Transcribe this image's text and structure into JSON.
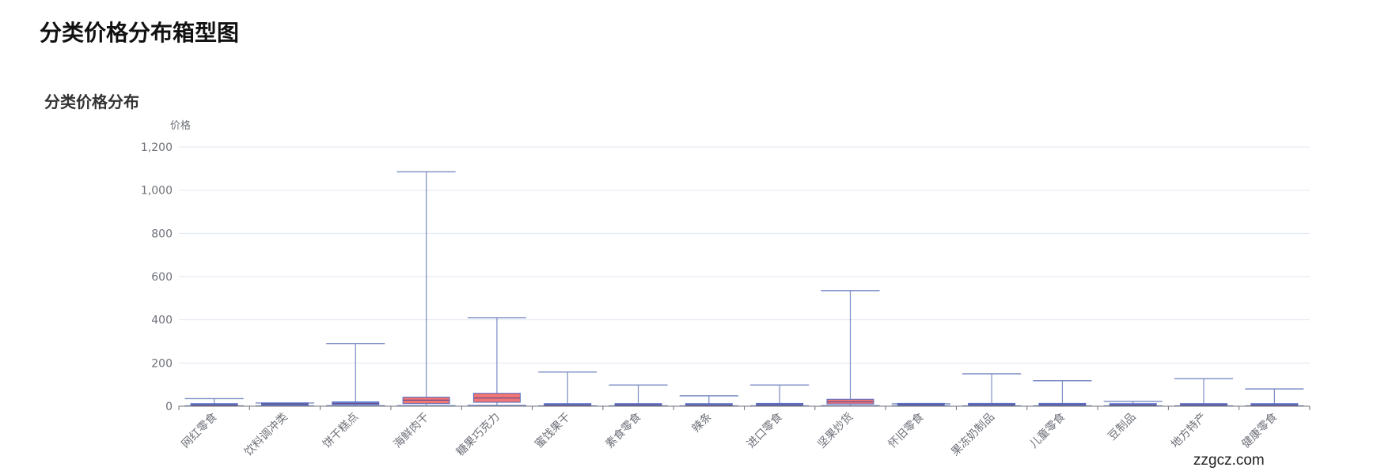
{
  "page": {
    "title": "分类价格分布箱型图",
    "watermark": "zzgcz.com"
  },
  "chart_data": {
    "type": "boxplot",
    "title": "分类价格分布",
    "xlabel": "",
    "ylabel": "价格",
    "ylim": [
      0,
      1200
    ],
    "yticks": [
      0,
      200,
      400,
      600,
      800,
      1000,
      1200
    ],
    "ytick_labels": [
      "0",
      "200",
      "400",
      "600",
      "800",
      "1,000",
      "1,200"
    ],
    "grid": true,
    "legend": "none",
    "colors": {
      "default_box": "#5470c6",
      "highlight_box": "#ee6666",
      "whisker": "#7b8cc4",
      "axis": "#6e7079",
      "grid": "#e0e6f1"
    },
    "categories": [
      "网红零食",
      "饮料调冲类",
      "饼干糕点",
      "海鲜肉干",
      "糖果巧克力",
      "蜜饯果干",
      "素食零食",
      "辣条",
      "进口零食",
      "坚果炒货",
      "怀旧零食",
      "果冻奶制品",
      "儿童零食",
      "豆制品",
      "地方特产",
      "健康零食"
    ],
    "boxes": [
      {
        "min": 2,
        "q1": 3,
        "median": 5,
        "q3": 8,
        "max": 35,
        "highlight": false
      },
      {
        "min": 2,
        "q1": 5,
        "median": 10,
        "q3": 15,
        "max": 15,
        "highlight": false
      },
      {
        "min": 3,
        "q1": 8,
        "median": 12,
        "q3": 20,
        "max": 290,
        "highlight": false
      },
      {
        "min": 3,
        "q1": 12,
        "median": 28,
        "q3": 42,
        "max": 1085,
        "highlight": true
      },
      {
        "min": 4,
        "q1": 18,
        "median": 38,
        "q3": 60,
        "max": 410,
        "highlight": true
      },
      {
        "min": 2,
        "q1": 3,
        "median": 5,
        "q3": 8,
        "max": 158,
        "highlight": false
      },
      {
        "min": 2,
        "q1": 3,
        "median": 6,
        "q3": 9,
        "max": 98,
        "highlight": false
      },
      {
        "min": 2,
        "q1": 3,
        "median": 4,
        "q3": 7,
        "max": 48,
        "highlight": false
      },
      {
        "min": 2,
        "q1": 4,
        "median": 6,
        "q3": 10,
        "max": 98,
        "highlight": false
      },
      {
        "min": 3,
        "q1": 10,
        "median": 20,
        "q3": 32,
        "max": 535,
        "highlight": true
      },
      {
        "min": 2,
        "q1": 4,
        "median": 7,
        "q3": 11,
        "max": 11,
        "highlight": false
      },
      {
        "min": 2,
        "q1": 4,
        "median": 7,
        "q3": 12,
        "max": 150,
        "highlight": false
      },
      {
        "min": 2,
        "q1": 4,
        "median": 7,
        "q3": 12,
        "max": 118,
        "highlight": false
      },
      {
        "min": 2,
        "q1": 3,
        "median": 5,
        "q3": 8,
        "max": 22,
        "highlight": false
      },
      {
        "min": 2,
        "q1": 3,
        "median": 6,
        "q3": 10,
        "max": 128,
        "highlight": false
      },
      {
        "min": 2,
        "q1": 3,
        "median": 5,
        "q3": 8,
        "max": 80,
        "highlight": false
      }
    ]
  }
}
